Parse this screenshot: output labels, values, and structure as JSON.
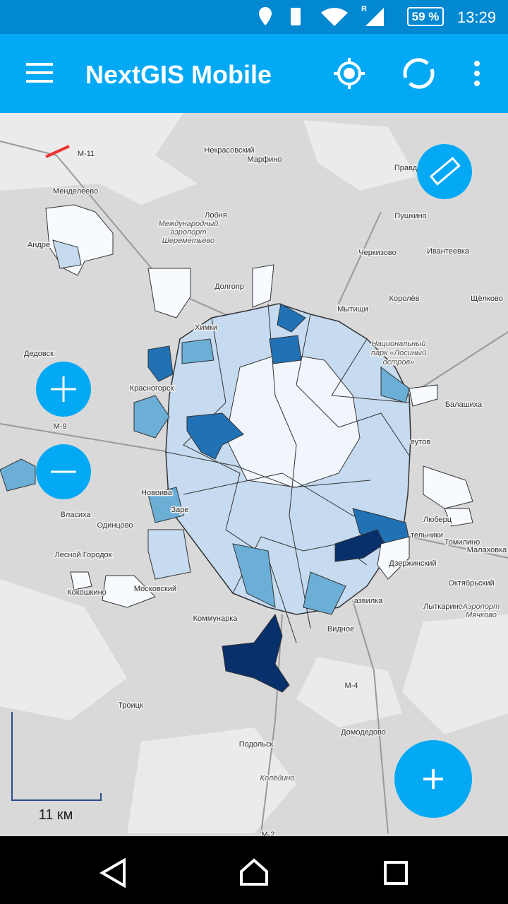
{
  "status_bar": {
    "roaming": "R",
    "battery": "59 %",
    "time": "13:29"
  },
  "toolbar": {
    "title": "NextGIS Mobile"
  },
  "map": {
    "labels": [
      "Некрасовский",
      "Марфино",
      "М-11",
      "Менделеево",
      "Андре",
      "Лобня",
      "Международный",
      "аэропорт",
      "Шереметьево",
      "Долгопр",
      "Правд",
      "Пушкино",
      "Черкизово",
      "Ивантеевка",
      "Мытищи",
      "Королёв",
      "Щёлково",
      "Химки",
      "Национальный",
      "парк «Лосиный",
      "остров»",
      "Дедовск",
      "Красногорск",
      "Балашиха",
      "М-9",
      "еутов",
      "Новоива",
      "Заре",
      "Власиха",
      "Люберц",
      "Одинцово",
      "тельники",
      "Томилино",
      "Малаховка",
      "Лесной Городок",
      "Дзержинский",
      "Кокошкино",
      "Московский",
      "Октябрьский",
      "азвилка",
      "Лыткарино",
      "Аэропорт",
      "Мячково",
      "Коммунарка",
      "Видное",
      "М-4",
      "Троицк",
      "Домодедово",
      "Подольск",
      "Колёдино",
      "М-2"
    ],
    "scale": "11 км"
  }
}
